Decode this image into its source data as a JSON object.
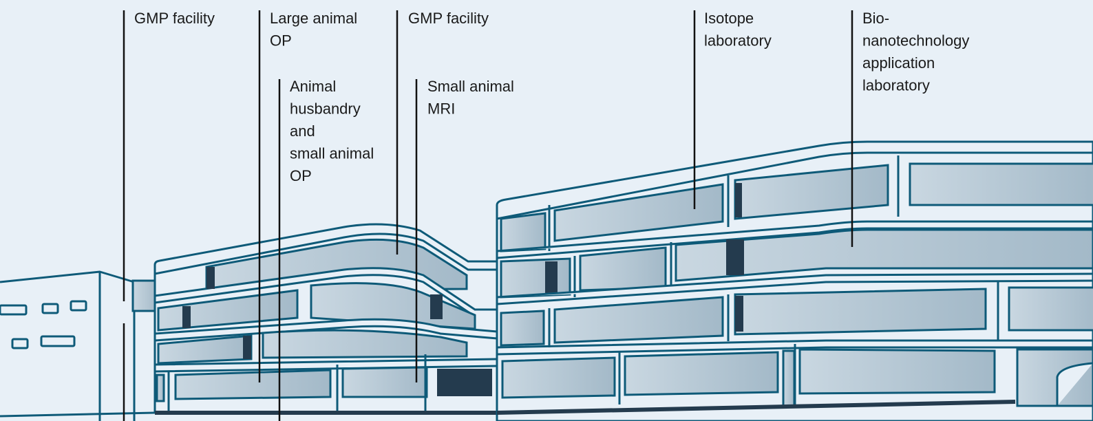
{
  "labels": [
    {
      "lines": [
        "GMP facility"
      ]
    },
    {
      "lines": [
        "Large animal",
        "OP"
      ]
    },
    {
      "lines": [
        "Animal",
        "husbandry",
        "and",
        "small animal",
        "OP"
      ]
    },
    {
      "lines": [
        "GMP facility"
      ]
    },
    {
      "lines": [
        "Small animal",
        "MRI"
      ]
    },
    {
      "lines": [
        "Isotope",
        "laboratory"
      ]
    },
    {
      "lines": [
        "Bio-",
        "nanotechnology",
        "application",
        "laboratory"
      ]
    }
  ]
}
